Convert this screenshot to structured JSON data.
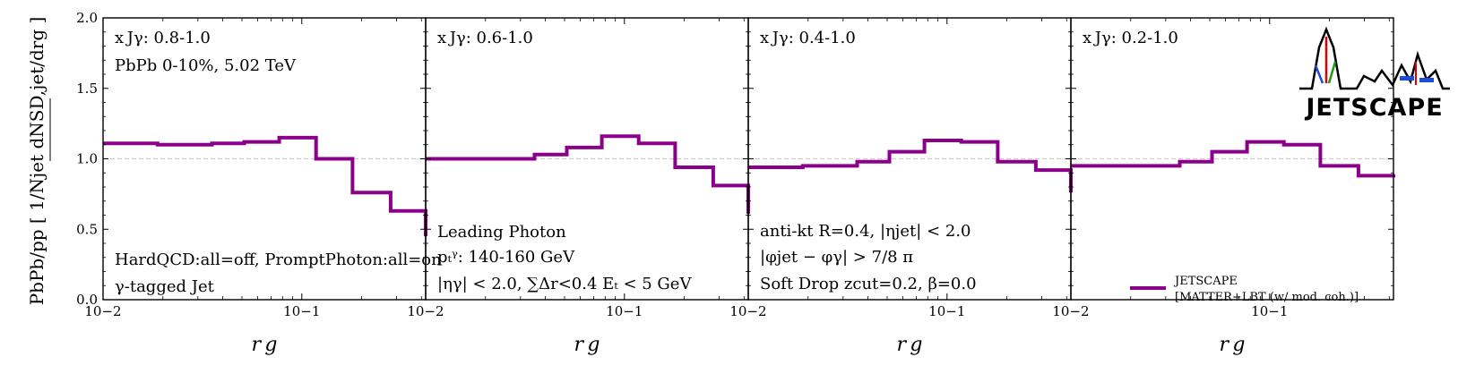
{
  "chart_data": [
    {
      "type": "line",
      "panel_label": "x Jγ: 0.8-1.0",
      "texts": [
        "PbPb 0-10%, 5.02 TeV",
        "HardQCD:all=off, PromptPhoton:all=on",
        "γ-tagged Jet"
      ],
      "bin_edges": [
        0.01,
        0.0188,
        0.0353,
        0.0513,
        0.077,
        0.118,
        0.18,
        0.28,
        0.42
      ],
      "values": [
        1.11,
        1.1,
        1.11,
        1.12,
        1.15,
        1.0,
        0.76,
        0.63,
        0.45
      ]
    },
    {
      "type": "line",
      "panel_label": "x Jγ: 0.6-1.0",
      "texts": [
        "Leading Photon",
        "pₜᵞ: 140-160 GeV",
        "|ηγ| < 2.0, ∑Δr<0.4 Eₜ < 5 GeV"
      ],
      "bin_edges": [
        0.01,
        0.0188,
        0.0353,
        0.0513,
        0.077,
        0.118,
        0.18,
        0.28,
        0.42
      ],
      "values": [
        1.0,
        1.0,
        1.03,
        1.08,
        1.16,
        1.11,
        0.94,
        0.81,
        0.61
      ]
    },
    {
      "type": "line",
      "panel_label": "x Jγ: 0.4-1.0",
      "texts": [
        "anti-kt R=0.4, |ηjet| < 2.0",
        "|φjet − φγ| > 7/8 π",
        "Soft Drop zcut=0.2, β=0.0"
      ],
      "bin_edges": [
        0.01,
        0.0188,
        0.0353,
        0.0513,
        0.077,
        0.118,
        0.18,
        0.28,
        0.42
      ],
      "values": [
        0.94,
        0.95,
        0.98,
        1.05,
        1.13,
        1.12,
        0.98,
        0.92,
        0.76
      ]
    },
    {
      "type": "line",
      "panel_label": "x Jγ: 0.2-1.0",
      "texts": [],
      "bin_edges": [
        0.01,
        0.0188,
        0.0353,
        0.0513,
        0.077,
        0.118,
        0.18,
        0.28,
        0.42
      ],
      "values": [
        0.95,
        0.95,
        0.98,
        1.05,
        1.12,
        1.1,
        0.95,
        0.88,
        0.89
      ]
    }
  ],
  "axes": {
    "xlabel": "r g",
    "ylabel": "PbPb/pp [ 1/Njet dNSD,jet/drg ]",
    "x_scale": "log",
    "xlim": [
      0.01,
      0.42
    ],
    "ylim": [
      0.0,
      2.0
    ],
    "y_ticks": [
      "0.0",
      "0.5",
      "1.0",
      "1.5",
      "2.0"
    ],
    "x_tick_major": [
      "10−2",
      "10−1"
    ],
    "reference_line": 1.0
  },
  "legend": {
    "label_line1": "JETSCAPE",
    "label_line2": "[MATTER+LBT (w/ mod. coh.)]",
    "color": "#8b008b"
  },
  "logo": {
    "text": "JETSCAPE"
  },
  "colors": {
    "series": "#8b008b",
    "reference": "#cccccc"
  }
}
